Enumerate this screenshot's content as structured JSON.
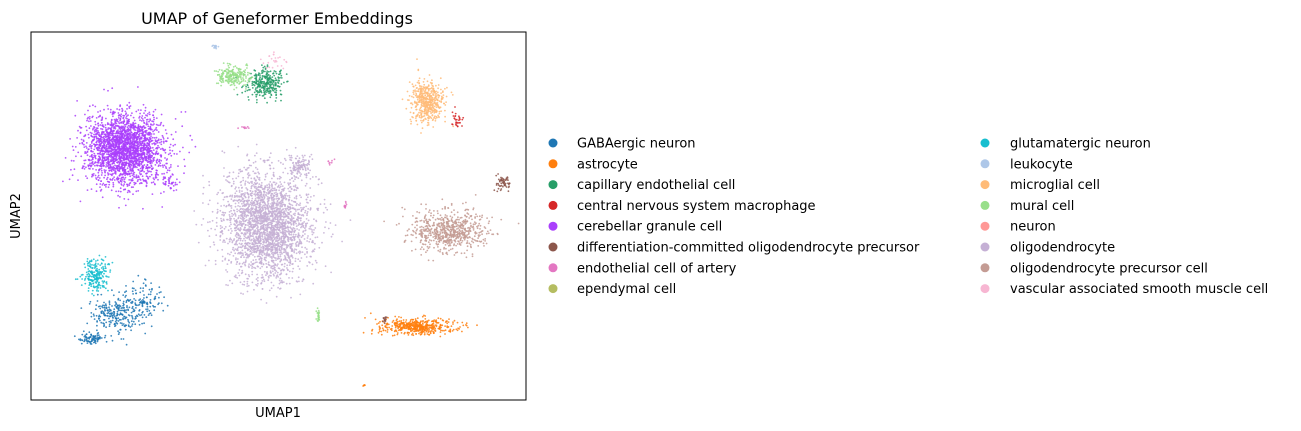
{
  "chart_data": {
    "type": "scatter",
    "title": "UMAP of Geneformer Embeddings",
    "xlabel": "UMAP1",
    "ylabel": "UMAP2",
    "xticks": [],
    "yticks": [],
    "grid": false,
    "legend_position": "right, outside plot, two columns",
    "series": [
      {
        "name": "GABAergic neuron",
        "color": "#1f77b4",
        "clusters": [
          {
            "cx": -8.6,
            "cy": -4.4,
            "sx": 1.2,
            "sy": 0.8,
            "n": 230
          },
          {
            "cx": -7.2,
            "cy": -3.6,
            "sx": 1.0,
            "sy": 0.9,
            "n": 130
          },
          {
            "cx": -9.7,
            "cy": -5.7,
            "sx": 0.6,
            "sy": 0.25,
            "n": 90
          }
        ]
      },
      {
        "name": "astrocyte",
        "color": "#ff7f0e",
        "clusters": [
          {
            "cx": 7.3,
            "cy": -5.0,
            "sx": 1.9,
            "sy": 0.4,
            "n": 480
          },
          {
            "cx": 4.5,
            "cy": -8.2,
            "sx": 0.08,
            "sy": 0.05,
            "n": 6
          }
        ]
      },
      {
        "name": "capillary endothelial cell",
        "color": "#279e68",
        "clusters": [
          {
            "cx": -0.7,
            "cy": 8.2,
            "sx": 0.8,
            "sy": 0.7,
            "n": 300
          }
        ]
      },
      {
        "name": "central nervous system macrophage",
        "color": "#d62728",
        "clusters": [
          {
            "cx": 9.4,
            "cy": 6.2,
            "sx": 0.3,
            "sy": 0.5,
            "n": 30
          }
        ]
      },
      {
        "name": "cerebellar granule cell",
        "color": "#aa40fc",
        "clusters": [
          {
            "cx": -8.1,
            "cy": 4.7,
            "sx": 1.85,
            "sy": 1.75,
            "n": 2400
          },
          {
            "cx": -5.7,
            "cy": 2.8,
            "sx": 0.4,
            "sy": 0.4,
            "n": 40
          }
        ]
      },
      {
        "name": "differentiation-committed oligodendrocyte precursor",
        "color": "#8c564b",
        "clusters": [
          {
            "cx": 11.8,
            "cy": 2.8,
            "sx": 0.4,
            "sy": 0.35,
            "n": 60
          },
          {
            "cx": 5.6,
            "cy": -4.6,
            "sx": 0.1,
            "sy": 0.2,
            "n": 15
          }
        ]
      },
      {
        "name": "endothelial cell of artery",
        "color": "#e377c2",
        "clusters": [
          {
            "cx": 3.5,
            "cy": 1.6,
            "sx": 0.1,
            "sy": 0.15,
            "n": 12
          },
          {
            "cx": -1.8,
            "cy": 5.8,
            "sx": 0.3,
            "sy": 0.08,
            "n": 10
          },
          {
            "cx": 2.7,
            "cy": 3.9,
            "sx": 0.2,
            "sy": 0.2,
            "n": 8
          }
        ]
      },
      {
        "name": "ependymal cell",
        "color": "#b5bd61",
        "clusters": []
      },
      {
        "name": "glutamatergic neuron",
        "color": "#17becf",
        "clusters": [
          {
            "cx": -9.6,
            "cy": -2.2,
            "sx": 0.6,
            "sy": 0.75,
            "n": 220
          }
        ]
      },
      {
        "name": "leukocyte",
        "color": "#aec7e8",
        "clusters": [
          {
            "cx": -3.3,
            "cy": 10.2,
            "sx": 0.12,
            "sy": 0.1,
            "n": 15
          }
        ]
      },
      {
        "name": "microglial cell",
        "color": "#ffbb78",
        "clusters": [
          {
            "cx": 7.8,
            "cy": 7.2,
            "sx": 0.8,
            "sy": 1.05,
            "n": 500
          }
        ]
      },
      {
        "name": "mural cell",
        "color": "#98df8a",
        "clusters": [
          {
            "cx": -2.4,
            "cy": 8.6,
            "sx": 0.8,
            "sy": 0.5,
            "n": 220
          },
          {
            "cx": 2.1,
            "cy": -4.4,
            "sx": 0.08,
            "sy": 0.5,
            "n": 25
          }
        ]
      },
      {
        "name": "neuron",
        "color": "#ff9896",
        "clusters": []
      },
      {
        "name": "oligodendrocyte",
        "color": "#c5b0d5",
        "clusters": [
          {
            "cx": -0.6,
            "cy": 0.5,
            "sx": 2.1,
            "sy": 2.6,
            "n": 2600
          },
          {
            "cx": 1.1,
            "cy": 3.6,
            "sx": 0.5,
            "sy": 0.6,
            "n": 120
          }
        ]
      },
      {
        "name": "oligodendrocyte precursor cell",
        "color": "#c49c94",
        "clusters": [
          {
            "cx": 9.0,
            "cy": 0.2,
            "sx": 1.8,
            "sy": 1.0,
            "n": 700
          }
        ]
      },
      {
        "name": "vascular associated smooth muscle cell",
        "color": "#f7b6d2",
        "clusters": [
          {
            "cx": -0.2,
            "cy": 9.4,
            "sx": 0.6,
            "sy": 0.4,
            "n": 25
          }
        ]
      }
    ],
    "xlim": [
      -13,
      13
    ],
    "ylim": [
      -9,
      11
    ],
    "point_opacity": 0.85
  }
}
